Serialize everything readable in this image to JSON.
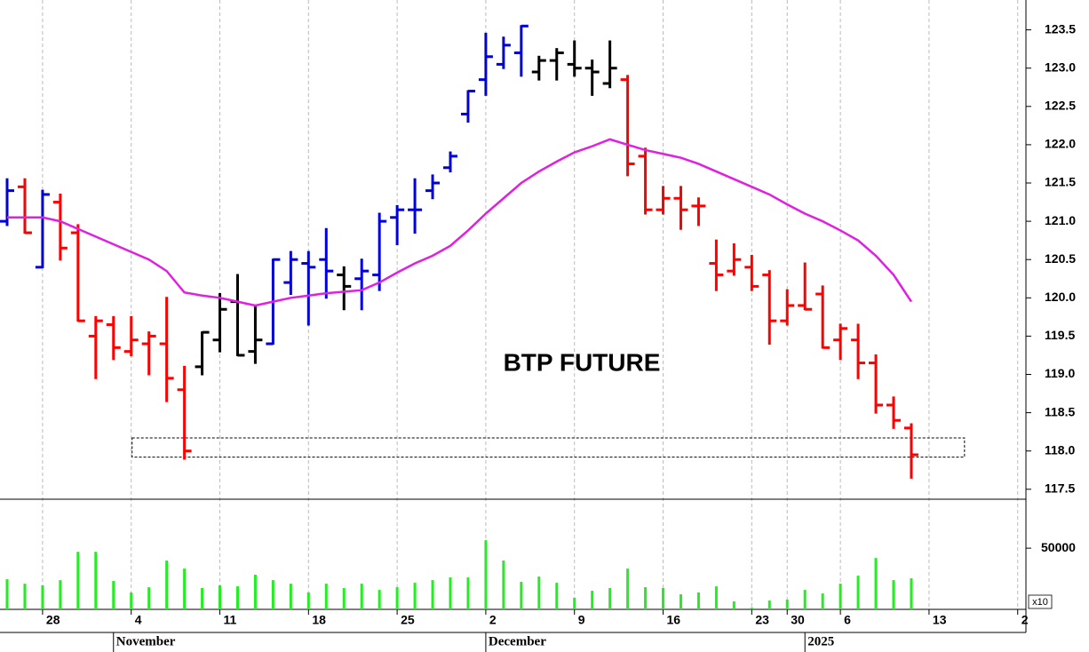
{
  "chart_data": [
    {
      "type": "ohlc",
      "title": "BTP FUTURE",
      "categories": [
        null,
        null,
        "28",
        null,
        null,
        null,
        null,
        "4",
        null,
        null,
        null,
        null,
        "11",
        null,
        null,
        null,
        null,
        "18",
        null,
        null,
        null,
        null,
        "25",
        null,
        null,
        null,
        null,
        "2",
        null,
        null,
        null,
        null,
        "9",
        null,
        null,
        null,
        null,
        "16",
        null,
        null,
        null,
        null,
        "23",
        null,
        "30",
        null,
        null,
        "6",
        null,
        null,
        null,
        null,
        "13",
        null,
        null,
        null,
        null,
        "2"
      ],
      "months": [
        "November",
        "December",
        "2025"
      ],
      "open": [
        121.0,
        121.45,
        120.4,
        121.25,
        120.85,
        119.5,
        119.65,
        119.3,
        119.4,
        119.4,
        118.8,
        119.1,
        119.45,
        119.95,
        119.3,
        119.4,
        120.2,
        120.45,
        120.5,
        120.3,
        120.25,
        120.3,
        121.05,
        121.15,
        121.4,
        121.7,
        122.4,
        122.85,
        123.05,
        123.2,
        122.95,
        123.1,
        123.05,
        123.0,
        122.8,
        122.85,
        121.85,
        121.15,
        121.3,
        121.2,
        120.45,
        120.35,
        120.4,
        120.3,
        119.7,
        119.9,
        120.05,
        119.45,
        119.45,
        119.15,
        118.6,
        118.3,
        null,
        null,
        null,
        null,
        null,
        null
      ],
      "high": [
        121.55,
        121.55,
        121.4,
        121.35,
        120.95,
        119.75,
        119.75,
        119.75,
        119.55,
        120.0,
        119.1,
        119.55,
        120.05,
        120.3,
        119.9,
        120.5,
        120.6,
        120.6,
        120.9,
        120.4,
        120.5,
        121.1,
        121.2,
        121.55,
        121.6,
        121.9,
        122.7,
        123.45,
        123.4,
        123.55,
        123.15,
        123.25,
        123.35,
        123.1,
        123.35,
        122.9,
        121.95,
        121.45,
        121.45,
        121.3,
        120.75,
        120.7,
        120.55,
        120.35,
        120.1,
        120.45,
        120.15,
        119.65,
        119.65,
        119.25,
        118.7,
        118.35,
        null,
        null,
        null,
        null,
        null,
        null
      ],
      "low": [
        120.95,
        120.85,
        120.4,
        120.5,
        119.7,
        118.95,
        119.2,
        119.25,
        119.0,
        118.65,
        117.9,
        119.0,
        119.3,
        119.25,
        119.15,
        119.4,
        120.05,
        119.65,
        120.0,
        119.85,
        119.85,
        120.1,
        120.7,
        120.85,
        121.3,
        121.65,
        122.3,
        122.65,
        123.0,
        122.9,
        122.85,
        122.85,
        122.9,
        122.65,
        122.75,
        121.6,
        121.1,
        121.1,
        120.9,
        120.95,
        120.1,
        120.3,
        120.1,
        119.4,
        119.65,
        119.85,
        119.35,
        119.2,
        118.95,
        118.5,
        118.3,
        117.65,
        null,
        null,
        null,
        null,
        null,
        null
      ],
      "close": [
        121.4,
        120.85,
        121.35,
        120.65,
        119.7,
        119.7,
        119.35,
        119.45,
        119.5,
        118.95,
        118.0,
        119.55,
        119.85,
        119.25,
        119.45,
        120.5,
        120.5,
        120.4,
        120.35,
        120.15,
        120.35,
        121.0,
        121.15,
        121.15,
        121.5,
        121.85,
        122.7,
        123.15,
        123.3,
        123.55,
        123.1,
        123.2,
        123.0,
        122.95,
        123.0,
        121.75,
        121.15,
        121.3,
        121.15,
        121.2,
        120.3,
        120.5,
        120.15,
        119.7,
        119.9,
        119.85,
        119.35,
        119.6,
        119.15,
        118.6,
        118.4,
        117.95,
        null,
        null,
        null,
        null,
        null,
        null
      ],
      "colors": [
        "#0000dd",
        "#ff0000",
        "#0000dd",
        "#ff0000",
        "#ff0000",
        "#ff0000",
        "#ff0000",
        "#ff0000",
        "#ff0000",
        "#ff0000",
        "#ff0000",
        "#000000",
        "#000000",
        "#000000",
        "#000000",
        "#0000dd",
        "#0000dd",
        "#0000dd",
        "#0000dd",
        "#000000",
        "#0000dd",
        "#0000dd",
        "#0000dd",
        "#0000dd",
        "#0000dd",
        "#0000dd",
        "#0000dd",
        "#0000dd",
        "#0000dd",
        "#0000dd",
        "#000000",
        "#000000",
        "#000000",
        "#000000",
        "#000000",
        "#ff0000",
        "#ff0000",
        "#ff0000",
        "#ff0000",
        "#ff0000",
        "#ff0000",
        "#ff0000",
        "#ff0000",
        "#ff0000",
        "#ff0000",
        "#ff0000",
        "#ff0000",
        "#ff0000",
        "#ff0000",
        "#ff0000",
        "#ff0000",
        "#ff0000",
        null,
        null,
        null,
        null,
        null,
        null
      ],
      "ma": {
        "color": "#e020e0",
        "values": [
          121.05,
          121.05,
          121.05,
          121.0,
          120.9,
          120.8,
          120.7,
          120.6,
          120.5,
          120.35,
          120.07,
          120.03,
          120.0,
          119.95,
          119.9,
          119.95,
          120.0,
          120.03,
          120.06,
          120.08,
          120.1,
          120.2,
          120.33,
          120.45,
          120.55,
          120.68,
          120.88,
          121.1,
          121.3,
          121.5,
          121.65,
          121.78,
          121.9,
          121.98,
          122.07,
          122.0,
          121.93,
          121.88,
          121.83,
          121.75,
          121.65,
          121.55,
          121.45,
          121.35,
          121.22,
          121.1,
          121.0,
          120.88,
          120.75,
          120.55,
          120.3,
          119.95,
          null,
          null,
          null,
          null,
          null,
          null
        ]
      },
      "support_zone": [
        117.92,
        118.17
      ],
      "ylim": [
        117.37,
        123.89
      ],
      "yticks": [
        117.5,
        {
          "value": 118,
          "label": "118.0"
        },
        118.5,
        {
          "value": 119,
          "label": "119.0"
        },
        119.5,
        {
          "value": 120,
          "label": "120.0"
        },
        120.5,
        {
          "value": 121,
          "label": "121.0"
        },
        121.5,
        {
          "value": 122,
          "label": "122.0"
        },
        122.5,
        {
          "value": 123,
          "label": "123.0"
        },
        123.5
      ],
      "grid": true
    },
    {
      "type": "bar",
      "color": "#22ee22",
      "scale_note": "x10",
      "values": [
        24600,
        21000,
        19600,
        23900,
        47100,
        47100,
        23200,
        13800,
        18100,
        39900,
        33300,
        17400,
        19600,
        18800,
        28300,
        23900,
        21000,
        13800,
        21000,
        17400,
        21000,
        15900,
        18100,
        21700,
        23900,
        26100,
        26100,
        56500,
        39900,
        22500,
        26800,
        21700,
        9400,
        15200,
        17400,
        33300,
        18100,
        17400,
        12300,
        13800,
        18800,
        6500,
        1500,
        7200,
        8000,
        15900,
        13000,
        21000,
        27500,
        42000,
        23900,
        25400,
        null,
        null,
        null,
        null,
        null,
        null
      ],
      "ylim": [
        0,
        90000
      ],
      "yticks": [
        50000
      ]
    }
  ]
}
